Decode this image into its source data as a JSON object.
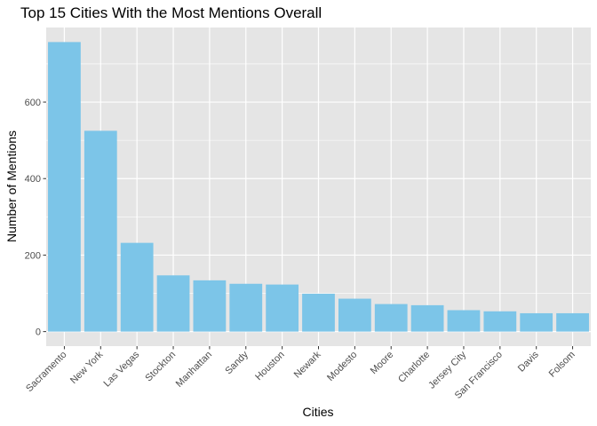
{
  "chart_data": {
    "type": "bar",
    "title": "Top 15 Cities With the Most Mentions Overall",
    "xlabel": "Cities",
    "ylabel": "Number of Mentions",
    "categories": [
      "Sacramento",
      "New York",
      "Las Vegas",
      "Stockton",
      "Manhattan",
      "Sandy",
      "Houston",
      "Newark",
      "Modesto",
      "Moore",
      "Charlotte",
      "Jersey City",
      "San Francisco",
      "Davis",
      "Folsom"
    ],
    "values": [
      757,
      525,
      232,
      147,
      134,
      125,
      123,
      99,
      86,
      72,
      69,
      56,
      53,
      48,
      48
    ],
    "ylim": [
      -38,
      795
    ],
    "yticks": [
      0,
      200,
      400,
      600
    ],
    "ytick_labels": [
      "0",
      "200",
      "400",
      "600"
    ],
    "grid": true,
    "colors": {
      "bar": "#7CC5E8",
      "panel": "#E5E5E5",
      "grid_major": "#FFFFFF",
      "text": "#000000",
      "tick_text": "#4D4D4D",
      "tick_mark": "#333333"
    }
  }
}
